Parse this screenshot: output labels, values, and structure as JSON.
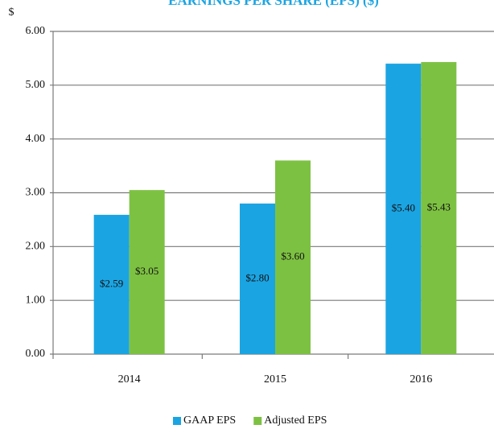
{
  "chart_data": {
    "type": "bar",
    "title": "EARNINGS PER SHARE (EPS) ($)",
    "y_label": "$",
    "categories": [
      "2014",
      "2015",
      "2016"
    ],
    "series": [
      {
        "name": "GAAP EPS",
        "color": "#1ba4e2",
        "values": [
          2.59,
          2.8,
          5.4
        ],
        "value_labels": [
          "$2.59",
          "$2.80",
          "$5.40"
        ]
      },
      {
        "name": "Adjusted EPS",
        "color": "#7dc142",
        "values": [
          3.05,
          3.6,
          5.43
        ],
        "value_labels": [
          "$3.05",
          "$3.60",
          "$5.43"
        ]
      }
    ],
    "ylim": [
      0,
      6
    ],
    "yticks": [
      {
        "value": 0,
        "label": "0.00"
      },
      {
        "value": 1,
        "label": "1.00"
      },
      {
        "value": 2,
        "label": "2.00"
      },
      {
        "value": 3,
        "label": "3.00"
      },
      {
        "value": 4,
        "label": "4.00"
      },
      {
        "value": 5,
        "label": "5.00"
      },
      {
        "value": 6,
        "label": "6.00"
      }
    ],
    "grid": true,
    "legend": "bottom"
  }
}
